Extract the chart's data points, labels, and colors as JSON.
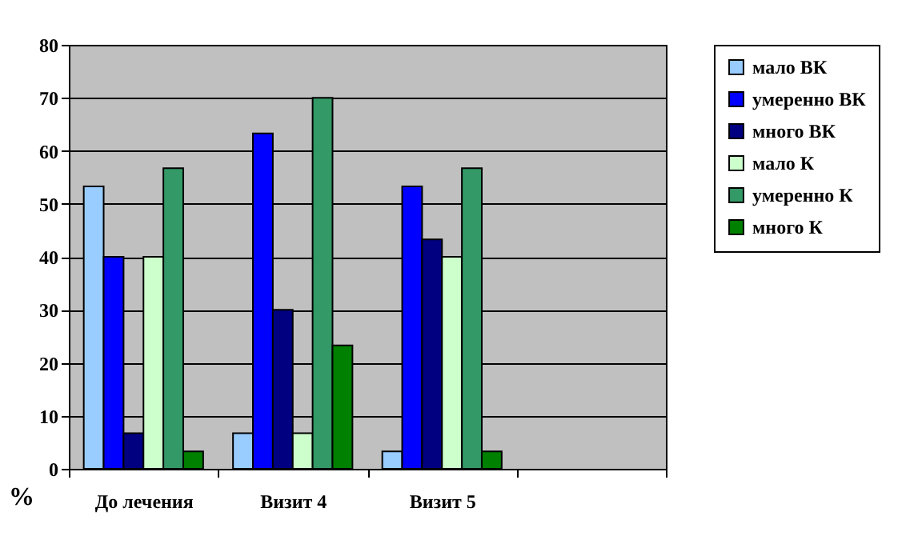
{
  "chart_data": {
    "type": "bar",
    "ylabel": "%",
    "categories": [
      "До лечения",
      "Визит 4",
      "Визит 5",
      null
    ],
    "series": [
      {
        "name": "мало ВК",
        "color": "#99ccff",
        "values": [
          53.3,
          6.7,
          3.3,
          null
        ]
      },
      {
        "name": "умеренно ВК",
        "color": "#0000ff",
        "values": [
          40,
          63.3,
          53.3,
          null
        ]
      },
      {
        "name": "много ВК",
        "color": "#000080",
        "values": [
          6.7,
          30,
          43.3,
          null
        ]
      },
      {
        "name": "мало К",
        "color": "#ccffcc",
        "values": [
          40,
          6.7,
          40,
          null
        ]
      },
      {
        "name": "умеренно К",
        "color": "#339966",
        "values": [
          56.7,
          70,
          56.7,
          null
        ]
      },
      {
        "name": "много К",
        "color": "#008000",
        "values": [
          3.3,
          23.3,
          3.3,
          null
        ]
      }
    ],
    "ylim": [
      0,
      80
    ],
    "yticks": [
      0,
      10,
      20,
      30,
      40,
      50,
      60,
      70,
      80
    ],
    "grid": "y",
    "legend": "right"
  }
}
